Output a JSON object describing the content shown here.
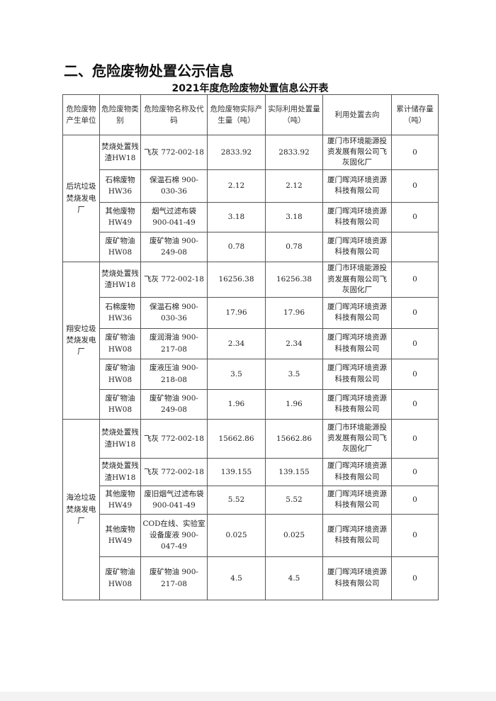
{
  "section_title": "二、危险废物处置公示信息",
  "table_title": "2021年度危险废物处置信息公开表",
  "headers": [
    "危险废物产生单位",
    "危险废物类别",
    "危险废物名称及代码",
    "危险废物实际产生量（吨）",
    "实际利用处置量（吨）",
    "利用处置去向",
    "累计储存量（吨）"
  ],
  "groups": [
    {
      "unit": "后坑垃圾焚烧发电厂",
      "rows": [
        {
          "category": "焚烧处置残渣HW18",
          "name": "飞灰 772-002-18",
          "produced": "2833.92",
          "disposed": "2833.92",
          "destination": "厦门市环境能源投资发展有限公司飞灰固化厂",
          "storage": "0"
        },
        {
          "category": "石棉废物HW36",
          "name": "保温石棉 900-030-36",
          "produced": "2.12",
          "disposed": "2.12",
          "destination": "厦门晖鸿环境资源科技有限公司",
          "storage": "0"
        },
        {
          "category": "其他废物HW49",
          "name": "烟气过滤布袋 900-041-49",
          "produced": "3.18",
          "disposed": "3.18",
          "destination": "厦门晖鸿环境资源科技有限公司",
          "storage": "0"
        },
        {
          "category": "废矿物油HW08",
          "name": "废矿物油 900-249-08",
          "produced": "0.78",
          "disposed": "0.78",
          "destination": "厦门晖鸿环境资源科技有限公司",
          "storage": ""
        }
      ]
    },
    {
      "unit": "翔安垃圾焚烧发电厂",
      "rows": [
        {
          "category": "焚烧处置残渣HW18",
          "name": "飞灰 772-002-18",
          "produced": "16256.38",
          "disposed": "16256.38",
          "destination": "厦门市环境能源投资发展有限公司飞灰固化厂",
          "storage": "0"
        },
        {
          "category": "石棉废物HW36",
          "name": "保温石棉 900-030-36",
          "produced": "17.96",
          "disposed": "17.96",
          "destination": "厦门晖鸿环境资源科技有限公司",
          "storage": "0"
        },
        {
          "category": "废矿物油HW08",
          "name": "废润滑油 900-217-08",
          "produced": "2.34",
          "disposed": "2.34",
          "destination": "厦门晖鸿环境资源科技有限公司",
          "storage": "0"
        },
        {
          "category": "废矿物油HW08",
          "name": "废液压油 900-218-08",
          "produced": "3.5",
          "disposed": "3.5",
          "destination": "厦门晖鸿环境资源科技有限公司",
          "storage": "0"
        },
        {
          "category": "废矿物油HW08",
          "name": "废矿物油 900-249-08",
          "produced": "1.96",
          "disposed": "1.96",
          "destination": "厦门晖鸿环境资源科技有限公司",
          "storage": "0"
        }
      ]
    },
    {
      "unit": "海沧垃圾焚烧发电厂",
      "rows": [
        {
          "category": "焚烧处置残渣HW18",
          "name": "飞灰 772-002-18",
          "produced": "15662.86",
          "disposed": "15662.86",
          "destination": "厦门市环境能源投资发展有限公司飞灰固化厂",
          "storage": "0"
        },
        {
          "category": "焚烧处置残渣HW18",
          "name": "飞灰 772-002-18",
          "produced": "139.155",
          "disposed": "139.155",
          "destination": "厦门晖鸿环境资源科技有限公司",
          "storage": "0"
        },
        {
          "category": "其他废物HW49",
          "name": "废旧烟气过滤布袋 900-041-49",
          "produced": "5.52",
          "disposed": "5.52",
          "destination": "厦门晖鸿环境资源科技有限公司",
          "storage": "0"
        },
        {
          "category": "其他废物HW49",
          "name": "COD在线、实验室设备废液 900-047-49",
          "produced": "0.025",
          "disposed": "0.025",
          "destination": "厦门晖鸿环境资源科技有限公司",
          "storage": "0"
        },
        {
          "category": "废矿物油HW08",
          "name": "废矿物油 900-217-08",
          "produced": "4.5",
          "disposed": "4.5",
          "destination": "厦门晖鸿环境资源科技有限公司",
          "storage": "0"
        }
      ]
    }
  ]
}
